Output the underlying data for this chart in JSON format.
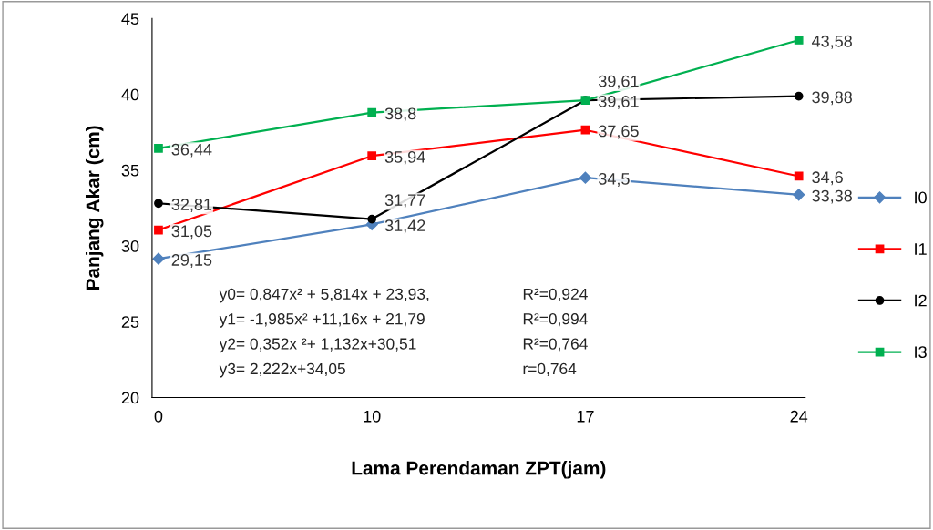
{
  "chart_data": {
    "type": "line",
    "xlabel": "Lama Perendaman ZPT(jam)",
    "ylabel": "Panjang Akar (cm)",
    "categories": [
      "0",
      "10",
      "17",
      "24"
    ],
    "series": [
      {
        "name": "I0",
        "color": "#4f81bd",
        "marker": "diamond",
        "values": [
          29.15,
          31.42,
          34.5,
          33.38
        ],
        "value_labels": [
          "29,15",
          "31,42",
          "34,5",
          "33,38"
        ]
      },
      {
        "name": "I1",
        "color": "#ff0000",
        "marker": "square",
        "values": [
          31.05,
          35.94,
          37.65,
          34.6
        ],
        "value_labels": [
          "31,05",
          "35,94",
          "37,65",
          "34,6"
        ]
      },
      {
        "name": "I2",
        "color": "#000000",
        "marker": "circle",
        "values": [
          32.81,
          31.77,
          39.61,
          39.88
        ],
        "value_labels": [
          "32,81",
          "31,77",
          "39,61",
          "39,88"
        ]
      },
      {
        "name": "I3",
        "color": "#00b050",
        "marker": "square",
        "values": [
          36.44,
          38.8,
          39.61,
          43.58
        ],
        "value_labels": [
          "36,44",
          "38,8",
          "39,61",
          "43,58"
        ]
      }
    ],
    "ylim": [
      20,
      45
    ],
    "yticks": [
      20,
      25,
      30,
      35,
      40,
      45
    ],
    "grid": false,
    "legend": "right",
    "annotations": [
      "y0= 0,847x² + 5,814x + 23,93,",
      "R²=0,924",
      "y1= -1,985x² +11,16x + 21,79",
      "R²=0,994",
      "y2= 0,352x ²+ 1,132x+30,51",
      "R²=0,764",
      "y3= 2,222x+34,05",
      "r=0,764"
    ]
  }
}
